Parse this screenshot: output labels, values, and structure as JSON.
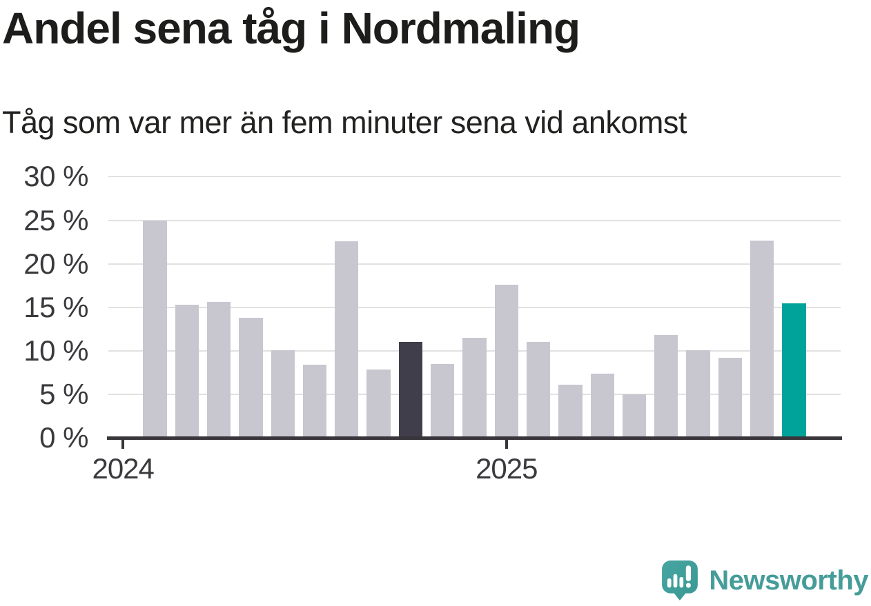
{
  "header": {
    "title": "Andel sena tåg i Nordmaling",
    "subtitle": "Tåg som var mer än fem minuter sena vid ankomst"
  },
  "chart_data": {
    "type": "bar",
    "title": "Andel sena tåg i Nordmaling",
    "subtitle": "Tåg som var mer än fem minuter sena vid ankomst",
    "unit": "%",
    "x": [
      "2024-02",
      "2024-03",
      "2024-04",
      "2024-05",
      "2024-06",
      "2024-07",
      "2024-08",
      "2024-09",
      "2024-10",
      "2024-11",
      "2024-12",
      "2025-01",
      "2025-02",
      "2025-03",
      "2025-04",
      "2025-05",
      "2025-06",
      "2025-07",
      "2025-08",
      "2025-09",
      "2025-10"
    ],
    "values": [
      25.0,
      15.3,
      15.6,
      13.8,
      10.1,
      8.4,
      22.6,
      7.9,
      11.0,
      8.5,
      11.5,
      17.6,
      11.0,
      6.1,
      7.4,
      5.0,
      11.8,
      10.1,
      9.2,
      22.7,
      15.5
    ],
    "ylim": [
      0,
      30
    ],
    "y_tick_values": [
      0,
      5,
      10,
      15,
      20,
      25,
      30
    ],
    "y_tick_labels": [
      "0 %",
      "5 %",
      "10 %",
      "15 %",
      "20 %",
      "25 %",
      "30 %"
    ],
    "x_tick_labels": [
      "2024",
      "2025"
    ],
    "x_tick_month_index": [
      -1,
      11
    ],
    "highlight": {
      "dark_index": 8,
      "teal_index": 20
    },
    "grid": "horizontal gridlines at 5% steps",
    "legend": "none"
  },
  "colors": {
    "bar_default": "#c8c6cf",
    "bar_dark": "#413e4b",
    "bar_highlight": "#00a39a",
    "axis": "#38363a",
    "gridline": "#e1e1e1",
    "title_text": "#1d1d1b",
    "axis_text": "#3a393d",
    "logo_icon": "#3e9f9b",
    "logo_text": "#459c99"
  },
  "footer": {
    "brand": "Newsworthy"
  }
}
